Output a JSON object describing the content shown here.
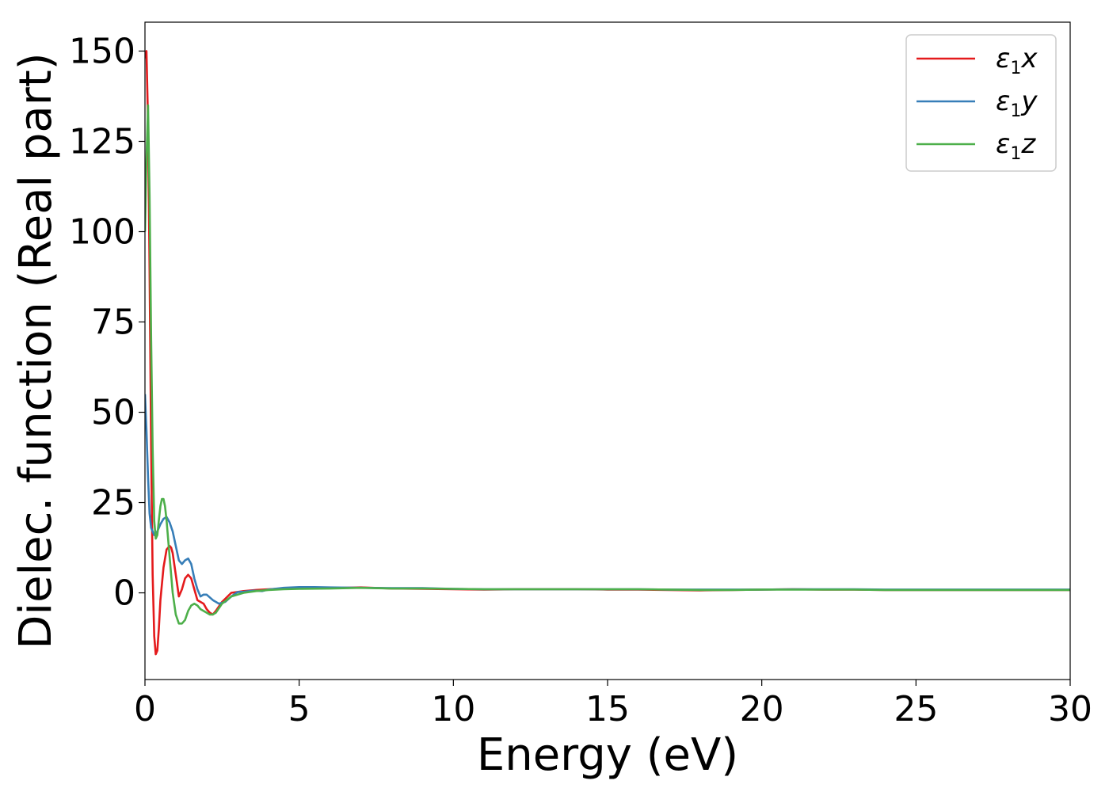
{
  "chart_data": {
    "type": "line",
    "title": "",
    "xlabel": "Energy (eV)",
    "ylabel": "Dielec. function (Real part)",
    "xlim": [
      0,
      30
    ],
    "ylim": [
      -24,
      158
    ],
    "xticks": [
      0,
      5,
      10,
      15,
      20,
      25,
      30
    ],
    "xtick_labels": [
      "0",
      "5",
      "10",
      "15",
      "20",
      "25",
      "30"
    ],
    "yticks": [
      0,
      25,
      50,
      75,
      100,
      125,
      150
    ],
    "ytick_labels": [
      "0",
      "25",
      "50",
      "75",
      "100",
      "125",
      "150"
    ],
    "grid": false,
    "legend_position": "top-right",
    "series": [
      {
        "name": "ε1x",
        "legend_main": "ε",
        "legend_sub": "1",
        "legend_suffix": "x",
        "color": "#e41a1c",
        "x": [
          0,
          0.05,
          0.1,
          0.15,
          0.2,
          0.25,
          0.3,
          0.35,
          0.4,
          0.45,
          0.5,
          0.6,
          0.7,
          0.8,
          0.85,
          0.9,
          1.0,
          1.1,
          1.2,
          1.3,
          1.4,
          1.5,
          1.6,
          1.7,
          1.8,
          1.9,
          2.0,
          2.1,
          2.2,
          2.3,
          2.5,
          2.8,
          3.2,
          3.6,
          4.0,
          4.5,
          5.0,
          6.0,
          7.0,
          8.0,
          9.0,
          10.0,
          11.0,
          12.0,
          13.0,
          14.0,
          15.0,
          16.0,
          17.0,
          18.0,
          19.0,
          20.0,
          21.0,
          22.0,
          23.0,
          24.0,
          25.0,
          26.0,
          27.0,
          28.0,
          29.0,
          30.0
        ],
        "y": [
          148,
          150,
          130,
          90,
          40,
          5,
          -12,
          -17,
          -16,
          -10,
          -2,
          7,
          12,
          13,
          12.5,
          11,
          5,
          -1,
          1,
          4,
          5,
          4,
          1,
          -2,
          -2.5,
          -3,
          -4.5,
          -5.5,
          -6,
          -5,
          -2.5,
          0,
          0.5,
          0.8,
          1,
          1.2,
          1.3,
          1.3,
          1.5,
          1.2,
          1.1,
          1.0,
          0.9,
          1.0,
          1.0,
          1.0,
          0.9,
          0.9,
          0.8,
          0.7,
          0.8,
          0.9,
          1.0,
          0.9,
          0.9,
          0.8,
          0.8,
          0.8,
          0.8,
          0.8,
          0.8,
          0.8
        ]
      },
      {
        "name": "ε1y",
        "legend_main": "ε",
        "legend_sub": "1",
        "legend_suffix": "y",
        "color": "#377eb8",
        "x": [
          0,
          0.05,
          0.1,
          0.15,
          0.2,
          0.3,
          0.4,
          0.5,
          0.6,
          0.7,
          0.8,
          0.9,
          1.0,
          1.1,
          1.2,
          1.3,
          1.4,
          1.5,
          1.6,
          1.7,
          1.8,
          1.9,
          2.0,
          2.2,
          2.4,
          2.6,
          2.8,
          3.0,
          3.2,
          3.5,
          3.8,
          4.0,
          4.5,
          5.0,
          5.5,
          6.0,
          7.0,
          8.0,
          9.0,
          10.0,
          11.0,
          12.0,
          13.0,
          14.0,
          15.0,
          16.0,
          17.0,
          18.0,
          19.0,
          20.0,
          21.0,
          22.0,
          23.0,
          24.0,
          25.0,
          26.0,
          27.0,
          28.0,
          29.0,
          30.0
        ],
        "y": [
          55,
          45,
          32,
          22,
          18,
          16,
          17,
          19,
          20.5,
          21,
          19.5,
          17,
          13,
          9,
          8,
          9,
          9.5,
          8,
          4,
          1,
          -1,
          -0.5,
          -0.5,
          -2,
          -3,
          -2.5,
          -1,
          0.2,
          0.3,
          0.6,
          0.5,
          0.9,
          1.4,
          1.6,
          1.6,
          1.5,
          1.4,
          1.3,
          1.3,
          1.1,
          1.0,
          1.0,
          1.0,
          1.0,
          1.0,
          1.0,
          0.9,
          0.9,
          0.9,
          0.9,
          1.0,
          1.0,
          1.0,
          0.9,
          0.9,
          0.9,
          0.9,
          0.9,
          0.9,
          0.9
        ]
      },
      {
        "name": "ε1z",
        "legend_main": "ε",
        "legend_sub": "1",
        "legend_suffix": "z",
        "color": "#4daf4a",
        "x": [
          0,
          0.05,
          0.1,
          0.15,
          0.2,
          0.25,
          0.3,
          0.35,
          0.4,
          0.45,
          0.5,
          0.55,
          0.6,
          0.65,
          0.7,
          0.8,
          0.9,
          1.0,
          1.1,
          1.2,
          1.3,
          1.4,
          1.5,
          1.6,
          1.7,
          1.8,
          1.9,
          2.0,
          2.1,
          2.2,
          2.3,
          2.5,
          2.8,
          3.2,
          3.6,
          4.0,
          4.5,
          5.0,
          6.0,
          7.0,
          8.0,
          9.0,
          10.0,
          11.0,
          12.0,
          13.0,
          14.0,
          15.0,
          16.0,
          17.0,
          18.0,
          19.0,
          20.0,
          21.0,
          22.0,
          23.0,
          24.0,
          25.0,
          26.0,
          27.0,
          28.0,
          29.0,
          30.0
        ],
        "y": [
          100,
          120,
          135,
          110,
          70,
          40,
          20,
          15,
          16,
          20,
          24,
          26,
          26,
          24,
          20,
          10,
          0,
          -6,
          -8.5,
          -8.5,
          -7.5,
          -5,
          -3.5,
          -3,
          -3.5,
          -4.5,
          -5,
          -5.5,
          -6,
          -6,
          -5.5,
          -3,
          -1,
          0,
          0.5,
          0.8,
          1.0,
          1.1,
          1.2,
          1.4,
          1.2,
          1.2,
          1.1,
          1.0,
          1.0,
          1.0,
          1.0,
          1.0,
          1.0,
          0.9,
          0.8,
          0.8,
          0.9,
          0.9,
          0.9,
          0.9,
          0.8,
          0.8,
          0.8,
          0.8,
          0.8,
          0.8,
          0.8
        ]
      }
    ]
  }
}
